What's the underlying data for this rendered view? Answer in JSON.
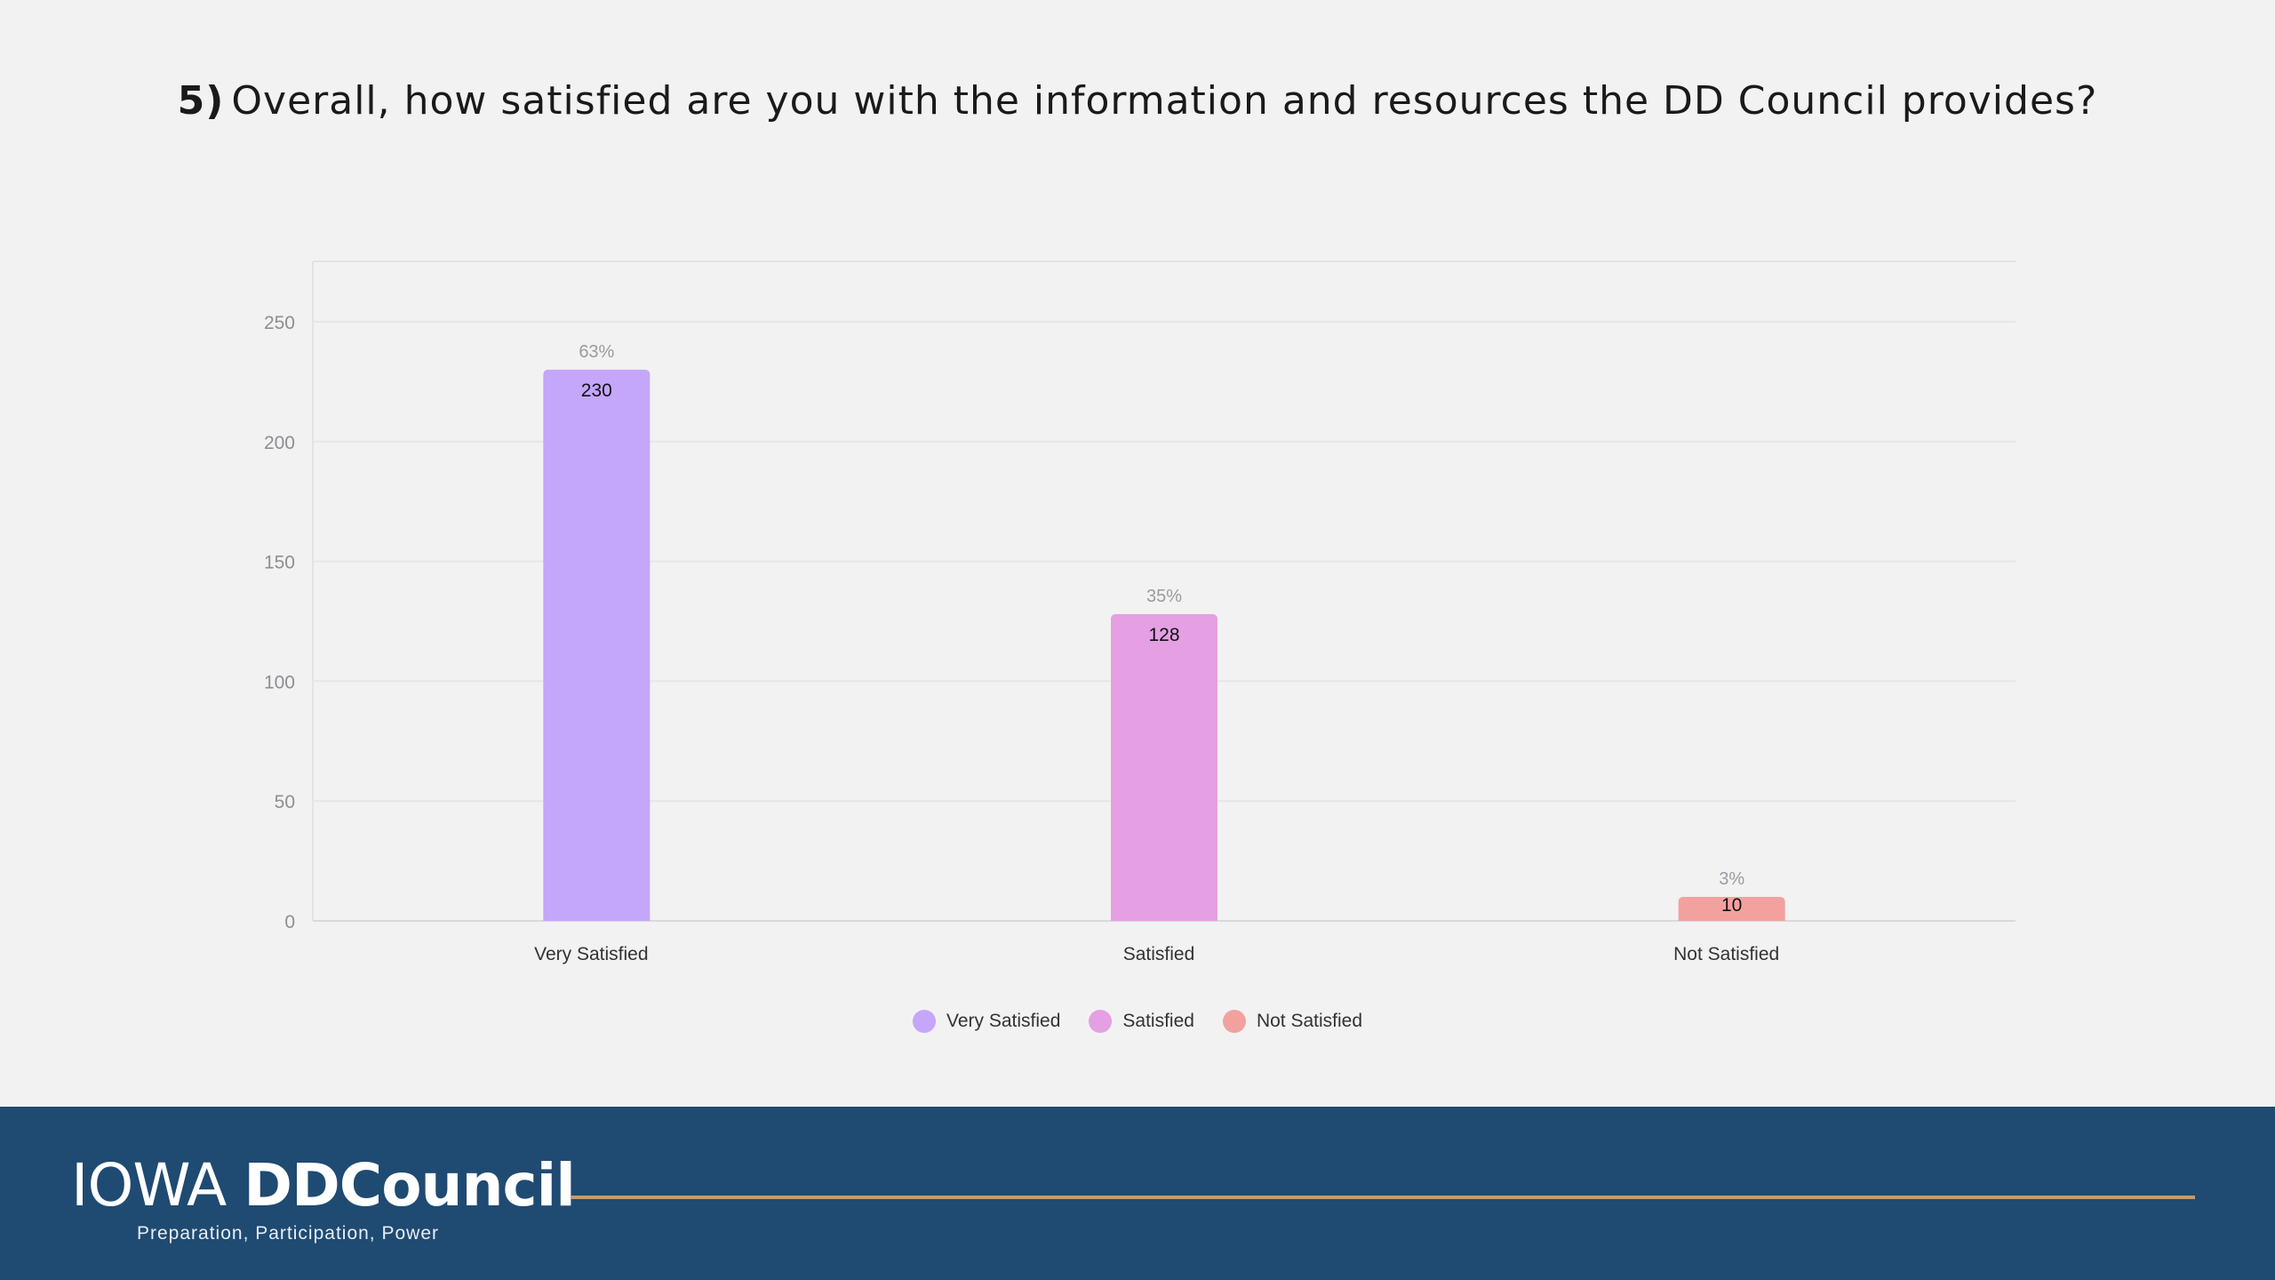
{
  "question": {
    "number": "5)",
    "text": "Overall, how satisfied are you with the information and resources the DD Council provides?"
  },
  "chart_data": {
    "type": "bar",
    "categories": [
      "Very Satisfied",
      "Satisfied",
      "Not Satisfied"
    ],
    "values": [
      230,
      128,
      10
    ],
    "percent_labels": [
      "63%",
      "35%",
      "3%"
    ],
    "colors": [
      "#c4a6fb",
      "#e4a0e2",
      "#f3a19f"
    ],
    "ylim": [
      0,
      250
    ],
    "yticks": [
      0,
      50,
      100,
      150,
      200,
      250
    ],
    "grid": true,
    "legend": {
      "position": "bottom-center",
      "entries": [
        "Very Satisfied",
        "Satisfied",
        "Not Satisfied"
      ]
    }
  },
  "footer": {
    "logo_part1": "IOWA ",
    "logo_part2": "DDCouncil",
    "tagline": "Preparation, Participation, Power",
    "background_color": "#1f4a72",
    "line_color": "#c79a74"
  }
}
